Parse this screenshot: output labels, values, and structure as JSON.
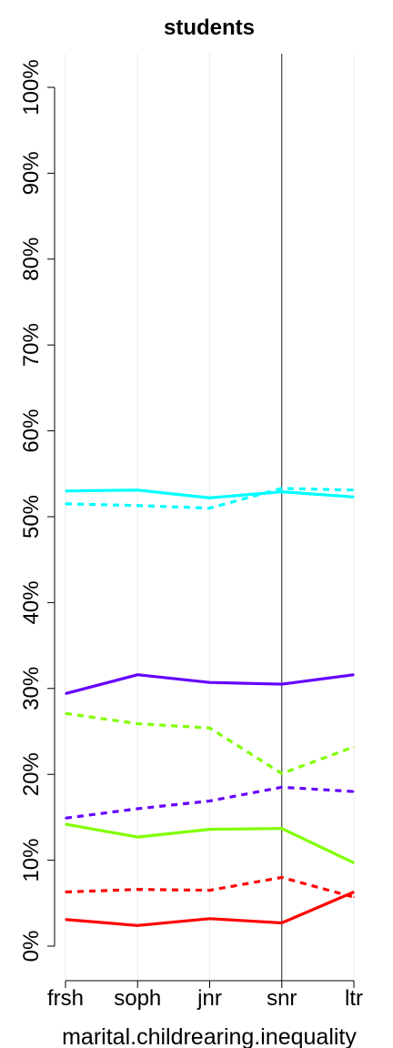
{
  "chart_data": {
    "type": "line",
    "title": "students",
    "xlabel": "marital.childrearing.inequality",
    "ylabel": "",
    "categories": [
      "frsh",
      "soph",
      "jnr",
      "snr",
      "ltr"
    ],
    "y_tick_labels": [
      "0%",
      "10%",
      "20%",
      "30%",
      "40%",
      "50%",
      "60%",
      "70%",
      "80%",
      "90%",
      "100%"
    ],
    "y_ticks": [
      0,
      10,
      20,
      30,
      40,
      50,
      60,
      70,
      80,
      90,
      100
    ],
    "ylim": [
      -3.5,
      104
    ],
    "grid": "vertical",
    "reference_line_at": "snr",
    "series": [
      {
        "color": "#00FFFF",
        "style": "solid",
        "values": [
          53.0,
          53.1,
          52.2,
          52.9,
          52.3
        ]
      },
      {
        "color": "#00FFFF",
        "style": "dashed",
        "values": [
          51.5,
          51.3,
          51.0,
          53.3,
          53.1
        ]
      },
      {
        "color": "#6600FF",
        "style": "solid",
        "values": [
          29.4,
          31.6,
          30.7,
          30.5,
          31.6
        ]
      },
      {
        "color": "#80FF00",
        "style": "dashed",
        "values": [
          27.1,
          25.9,
          25.4,
          20.1,
          23.2
        ]
      },
      {
        "color": "#6600FF",
        "style": "dashed",
        "values": [
          14.9,
          16.0,
          16.9,
          18.5,
          18.0
        ]
      },
      {
        "color": "#80FF00",
        "style": "solid",
        "values": [
          14.2,
          12.7,
          13.6,
          13.7,
          9.7
        ]
      },
      {
        "color": "#FF0000",
        "style": "dashed",
        "values": [
          6.3,
          6.6,
          6.5,
          8.0,
          5.7
        ]
      },
      {
        "color": "#FF0000",
        "style": "solid",
        "values": [
          3.1,
          2.4,
          3.2,
          2.7,
          6.3
        ]
      }
    ]
  }
}
